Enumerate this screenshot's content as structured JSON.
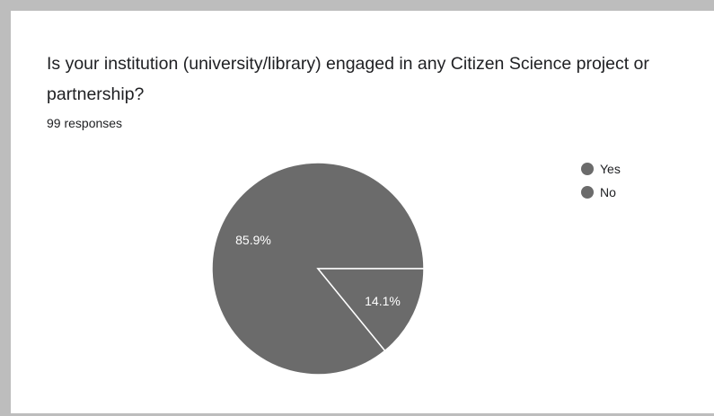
{
  "question": {
    "title": "Is your institution (university/library) engaged in any Citizen Science project or partnership?",
    "responses": "99 responses"
  },
  "colors": {
    "yes": "#6b6b6b",
    "no": "#6b6b6b",
    "slice_border": "#ffffff",
    "card_border": "#bdbdbd"
  },
  "chart_data": {
    "type": "pie",
    "categories": [
      "Yes",
      "No"
    ],
    "values": [
      85.9,
      14.1
    ],
    "labels": [
      "85.9%",
      "14.1%"
    ],
    "legend": "right"
  }
}
